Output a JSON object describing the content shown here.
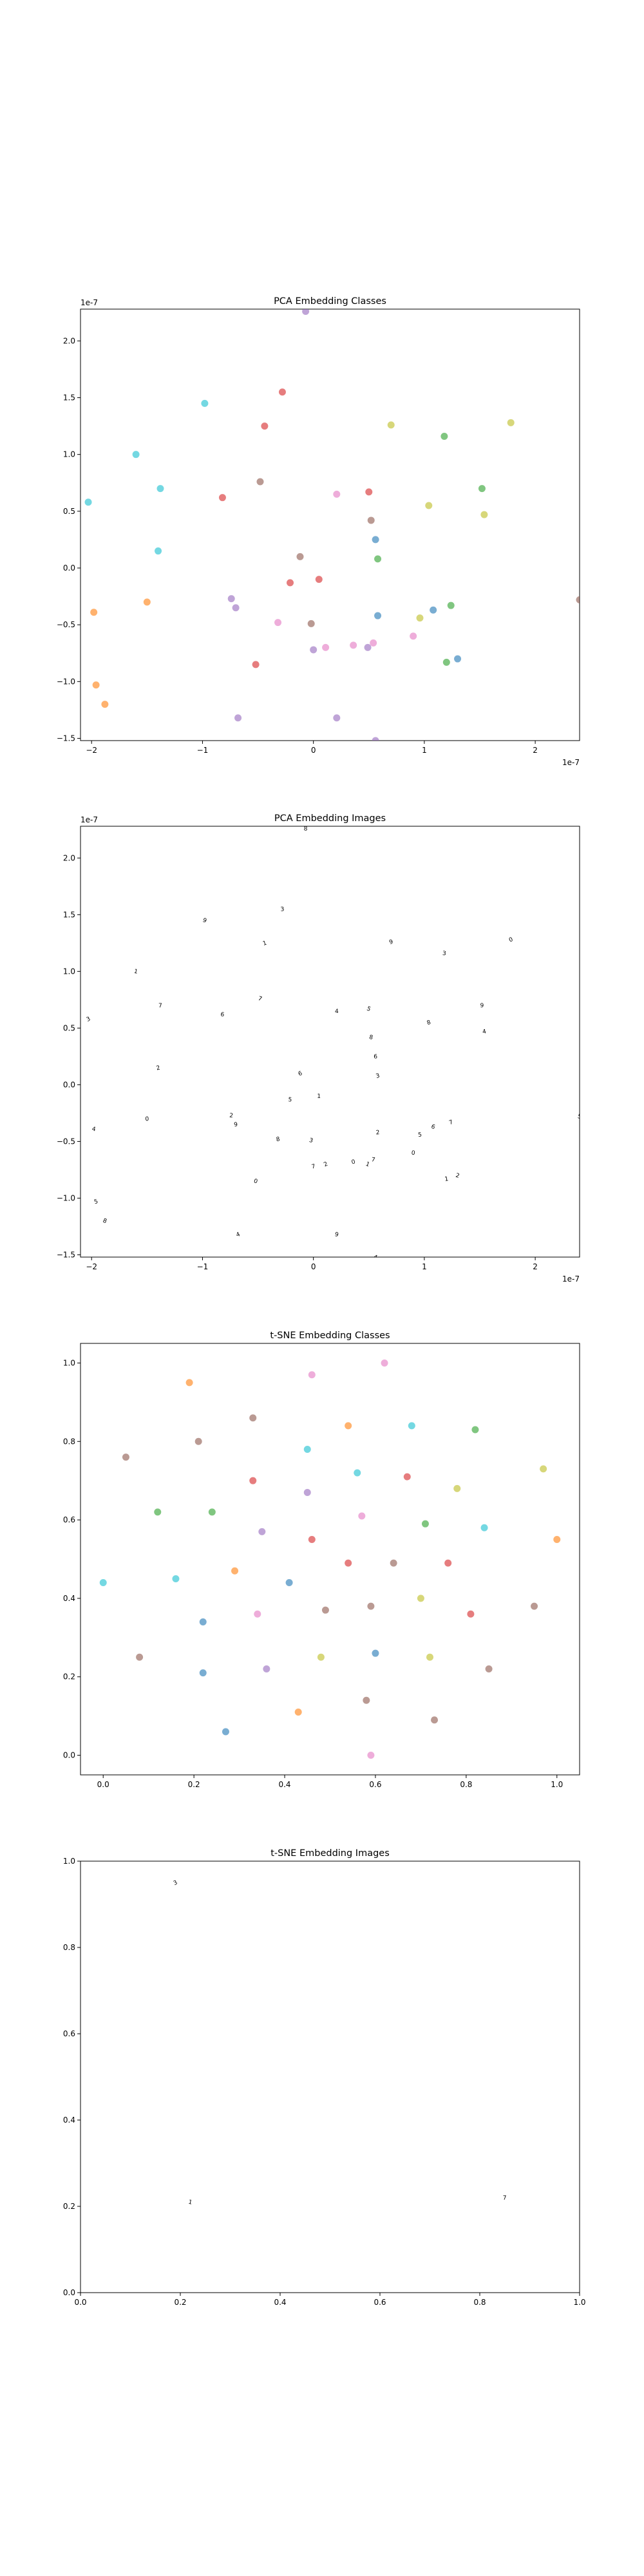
{
  "chart_data": [
    {
      "type": "scatter",
      "title": "PCA Embedding Classes",
      "xlabel": "",
      "ylabel": "",
      "x_multiplier": "1e-7",
      "y_multiplier": "1e-7",
      "xlim": [
        -2.1,
        2.4
      ],
      "ylim": [
        -1.52,
        2.28
      ],
      "xticks": [
        -2,
        -1,
        0,
        1,
        2
      ],
      "xtick_labels": [
        "−2",
        "−1",
        "0",
        "1",
        "2"
      ],
      "yticks": [
        -1.5,
        -1.0,
        -0.5,
        0.0,
        0.5,
        1.0,
        1.5,
        2.0
      ],
      "ytick_labels": [
        "−1.5",
        "−1.0",
        "−0.5",
        "0.0",
        "0.5",
        "1.0",
        "1.5",
        "2.0"
      ],
      "grid": false,
      "points": [
        {
          "x": -2.03,
          "y": 0.58,
          "color": "#17becf"
        },
        {
          "x": -1.6,
          "y": 1.0,
          "color": "#17becf"
        },
        {
          "x": -1.38,
          "y": 0.7,
          "color": "#17becf"
        },
        {
          "x": -1.4,
          "y": 0.15,
          "color": "#17becf"
        },
        {
          "x": -0.98,
          "y": 1.45,
          "color": "#17becf"
        },
        {
          "x": -1.98,
          "y": -0.39,
          "color": "#ff7f0e"
        },
        {
          "x": -1.5,
          "y": -0.3,
          "color": "#ff7f0e"
        },
        {
          "x": -1.96,
          "y": -1.03,
          "color": "#ff7f0e"
        },
        {
          "x": -1.88,
          "y": -1.2,
          "color": "#ff7f0e"
        },
        {
          "x": -0.82,
          "y": 0.62,
          "color": "#d62728"
        },
        {
          "x": -0.28,
          "y": 1.55,
          "color": "#d62728"
        },
        {
          "x": -0.44,
          "y": 1.25,
          "color": "#d62728"
        },
        {
          "x": -0.48,
          "y": 0.76,
          "color": "#8c564b"
        },
        {
          "x": -0.74,
          "y": -0.27,
          "color": "#9467bd"
        },
        {
          "x": -0.7,
          "y": -0.35,
          "color": "#9467bd"
        },
        {
          "x": -0.68,
          "y": -1.32,
          "color": "#9467bd"
        },
        {
          "x": -0.52,
          "y": -0.85,
          "color": "#d62728"
        },
        {
          "x": -0.21,
          "y": -0.13,
          "color": "#d62728"
        },
        {
          "x": -0.32,
          "y": -0.48,
          "color": "#e377c2"
        },
        {
          "x": -0.12,
          "y": 0.1,
          "color": "#8c564b"
        },
        {
          "x": -0.02,
          "y": -0.49,
          "color": "#8c564b"
        },
        {
          "x": 0.05,
          "y": -0.1,
          "color": "#d62728"
        },
        {
          "x": 0.0,
          "y": -0.72,
          "color": "#9467bd"
        },
        {
          "x": 0.11,
          "y": -0.7,
          "color": "#e377c2"
        },
        {
          "x": 0.21,
          "y": -1.32,
          "color": "#9467bd"
        },
        {
          "x": 0.21,
          "y": 0.65,
          "color": "#e377c2"
        },
        {
          "x": 0.36,
          "y": -0.68,
          "color": "#e377c2"
        },
        {
          "x": 0.5,
          "y": 0.67,
          "color": "#d62728"
        },
        {
          "x": 0.52,
          "y": 0.42,
          "color": "#8c564b"
        },
        {
          "x": 0.56,
          "y": 0.25,
          "color": "#1f77b4"
        },
        {
          "x": 0.58,
          "y": 0.08,
          "color": "#2ca02c"
        },
        {
          "x": 0.49,
          "y": -0.7,
          "color": "#9467bd"
        },
        {
          "x": 0.54,
          "y": -0.66,
          "color": "#e377c2"
        },
        {
          "x": 0.58,
          "y": -0.42,
          "color": "#1f77b4"
        },
        {
          "x": 0.7,
          "y": 1.26,
          "color": "#bcbd22"
        },
        {
          "x": 0.56,
          "y": -1.52,
          "color": "#9467bd"
        },
        {
          "x": 0.9,
          "y": -0.6,
          "color": "#e377c2"
        },
        {
          "x": 0.96,
          "y": -0.44,
          "color": "#bcbd22"
        },
        {
          "x": 1.04,
          "y": 0.55,
          "color": "#bcbd22"
        },
        {
          "x": 1.08,
          "y": -0.37,
          "color": "#1f77b4"
        },
        {
          "x": 1.18,
          "y": 1.16,
          "color": "#2ca02c"
        },
        {
          "x": 1.2,
          "y": -0.83,
          "color": "#2ca02c"
        },
        {
          "x": 1.24,
          "y": -0.33,
          "color": "#2ca02c"
        },
        {
          "x": 1.3,
          "y": -0.8,
          "color": "#1f77b4"
        },
        {
          "x": 1.52,
          "y": 0.7,
          "color": "#2ca02c"
        },
        {
          "x": 1.54,
          "y": 0.47,
          "color": "#bcbd22"
        },
        {
          "x": 1.78,
          "y": 1.28,
          "color": "#bcbd22"
        },
        {
          "x": 2.4,
          "y": -0.28,
          "color": "#8c564b"
        },
        {
          "x": -0.07,
          "y": 2.26,
          "color": "#9467bd"
        }
      ]
    },
    {
      "type": "scatter",
      "title": "PCA Embedding Images",
      "xlabel": "",
      "ylabel": "",
      "x_multiplier": "1e-7",
      "y_multiplier": "1e-7",
      "xlim": [
        -2.1,
        2.4
      ],
      "ylim": [
        -1.52,
        2.28
      ],
      "xticks": [
        -2,
        -1,
        0,
        1,
        2
      ],
      "xtick_labels": [
        "−2",
        "−1",
        "0",
        "1",
        "2"
      ],
      "yticks": [
        -1.5,
        -1.0,
        -0.5,
        0.0,
        0.5,
        1.0,
        1.5,
        2.0
      ],
      "ytick_labels": [
        "−1.5",
        "−1.0",
        "−0.5",
        "0.0",
        "0.5",
        "1.0",
        "1.5",
        "2.0"
      ],
      "grid": false,
      "marker": "digit thumbnails"
    },
    {
      "type": "scatter",
      "title": "t-SNE Embedding Classes",
      "xlabel": "",
      "ylabel": "",
      "xlim": [
        -0.05,
        1.05
      ],
      "ylim": [
        -0.05,
        1.05
      ],
      "xticks": [
        0.0,
        0.2,
        0.4,
        0.6,
        0.8,
        1.0
      ],
      "xtick_labels": [
        "0.0",
        "0.2",
        "0.4",
        "0.6",
        "0.8",
        "1.0"
      ],
      "yticks": [
        0.0,
        0.2,
        0.4,
        0.6,
        0.8,
        1.0
      ],
      "ytick_labels": [
        "0.0",
        "0.2",
        "0.4",
        "0.6",
        "0.8",
        "1.0"
      ],
      "grid": false,
      "points": [
        {
          "x": 0.0,
          "y": 0.44,
          "color": "#17becf"
        },
        {
          "x": 0.05,
          "y": 0.76,
          "color": "#8c564b"
        },
        {
          "x": 0.08,
          "y": 0.25,
          "color": "#8c564b"
        },
        {
          "x": 0.12,
          "y": 0.62,
          "color": "#2ca02c"
        },
        {
          "x": 0.16,
          "y": 0.45,
          "color": "#17becf"
        },
        {
          "x": 0.19,
          "y": 0.95,
          "color": "#ff7f0e"
        },
        {
          "x": 0.21,
          "y": 0.8,
          "color": "#8c564b"
        },
        {
          "x": 0.22,
          "y": 0.34,
          "color": "#1f77b4"
        },
        {
          "x": 0.22,
          "y": 0.21,
          "color": "#1f77b4"
        },
        {
          "x": 0.24,
          "y": 0.62,
          "color": "#2ca02c"
        },
        {
          "x": 0.27,
          "y": 0.06,
          "color": "#1f77b4"
        },
        {
          "x": 0.29,
          "y": 0.47,
          "color": "#ff7f0e"
        },
        {
          "x": 0.33,
          "y": 0.86,
          "color": "#8c564b"
        },
        {
          "x": 0.33,
          "y": 0.7,
          "color": "#d62728"
        },
        {
          "x": 0.34,
          "y": 0.36,
          "color": "#e377c2"
        },
        {
          "x": 0.35,
          "y": 0.57,
          "color": "#9467bd"
        },
        {
          "x": 0.36,
          "y": 0.22,
          "color": "#9467bd"
        },
        {
          "x": 0.41,
          "y": 0.44,
          "color": "#1f77b4"
        },
        {
          "x": 0.43,
          "y": 0.11,
          "color": "#ff7f0e"
        },
        {
          "x": 0.45,
          "y": 0.78,
          "color": "#17becf"
        },
        {
          "x": 0.45,
          "y": 0.67,
          "color": "#9467bd"
        },
        {
          "x": 0.46,
          "y": 0.97,
          "color": "#e377c2"
        },
        {
          "x": 0.46,
          "y": 0.55,
          "color": "#d62728"
        },
        {
          "x": 0.48,
          "y": 0.25,
          "color": "#bcbd22"
        },
        {
          "x": 0.49,
          "y": 0.37,
          "color": "#8c564b"
        },
        {
          "x": 0.54,
          "y": 0.84,
          "color": "#ff7f0e"
        },
        {
          "x": 0.54,
          "y": 0.49,
          "color": "#d62728"
        },
        {
          "x": 0.56,
          "y": 0.72,
          "color": "#17becf"
        },
        {
          "x": 0.57,
          "y": 0.61,
          "color": "#e377c2"
        },
        {
          "x": 0.58,
          "y": 0.14,
          "color": "#8c564b"
        },
        {
          "x": 0.59,
          "y": 0.38,
          "color": "#8c564b"
        },
        {
          "x": 0.59,
          "y": 0.0,
          "color": "#e377c2"
        },
        {
          "x": 0.6,
          "y": 0.26,
          "color": "#1f77b4"
        },
        {
          "x": 0.62,
          "y": 1.0,
          "color": "#e377c2"
        },
        {
          "x": 0.64,
          "y": 0.49,
          "color": "#8c564b"
        },
        {
          "x": 0.67,
          "y": 0.71,
          "color": "#d62728"
        },
        {
          "x": 0.68,
          "y": 0.84,
          "color": "#17becf"
        },
        {
          "x": 0.7,
          "y": 0.4,
          "color": "#bcbd22"
        },
        {
          "x": 0.71,
          "y": 0.59,
          "color": "#2ca02c"
        },
        {
          "x": 0.72,
          "y": 0.25,
          "color": "#bcbd22"
        },
        {
          "x": 0.73,
          "y": 0.09,
          "color": "#8c564b"
        },
        {
          "x": 0.76,
          "y": 0.49,
          "color": "#d62728"
        },
        {
          "x": 0.78,
          "y": 0.68,
          "color": "#bcbd22"
        },
        {
          "x": 0.81,
          "y": 0.36,
          "color": "#d62728"
        },
        {
          "x": 0.82,
          "y": 0.83,
          "color": "#2ca02c"
        },
        {
          "x": 0.84,
          "y": 0.58,
          "color": "#17becf"
        },
        {
          "x": 0.85,
          "y": 0.22,
          "color": "#8c564b"
        },
        {
          "x": 0.95,
          "y": 0.38,
          "color": "#8c564b"
        },
        {
          "x": 0.97,
          "y": 0.73,
          "color": "#bcbd22"
        },
        {
          "x": 1.0,
          "y": 0.55,
          "color": "#ff7f0e"
        }
      ]
    },
    {
      "type": "scatter",
      "title": "t-SNE Embedding Images",
      "xlabel": "",
      "ylabel": "",
      "xlim": [
        0.0,
        1.0
      ],
      "ylim": [
        0.0,
        1.0
      ],
      "xticks": [
        0.0,
        0.2,
        0.4,
        0.6,
        0.8,
        1.0
      ],
      "xtick_labels": [
        "0.0",
        "0.2",
        "0.4",
        "0.6",
        "0.8",
        "1.0"
      ],
      "yticks": [
        0.0,
        0.2,
        0.4,
        0.6,
        0.8,
        1.0
      ],
      "ytick_labels": [
        "0.0",
        "0.2",
        "0.4",
        "0.6",
        "0.8",
        "1.0"
      ],
      "grid": false,
      "marker": "digit thumbnails"
    }
  ]
}
